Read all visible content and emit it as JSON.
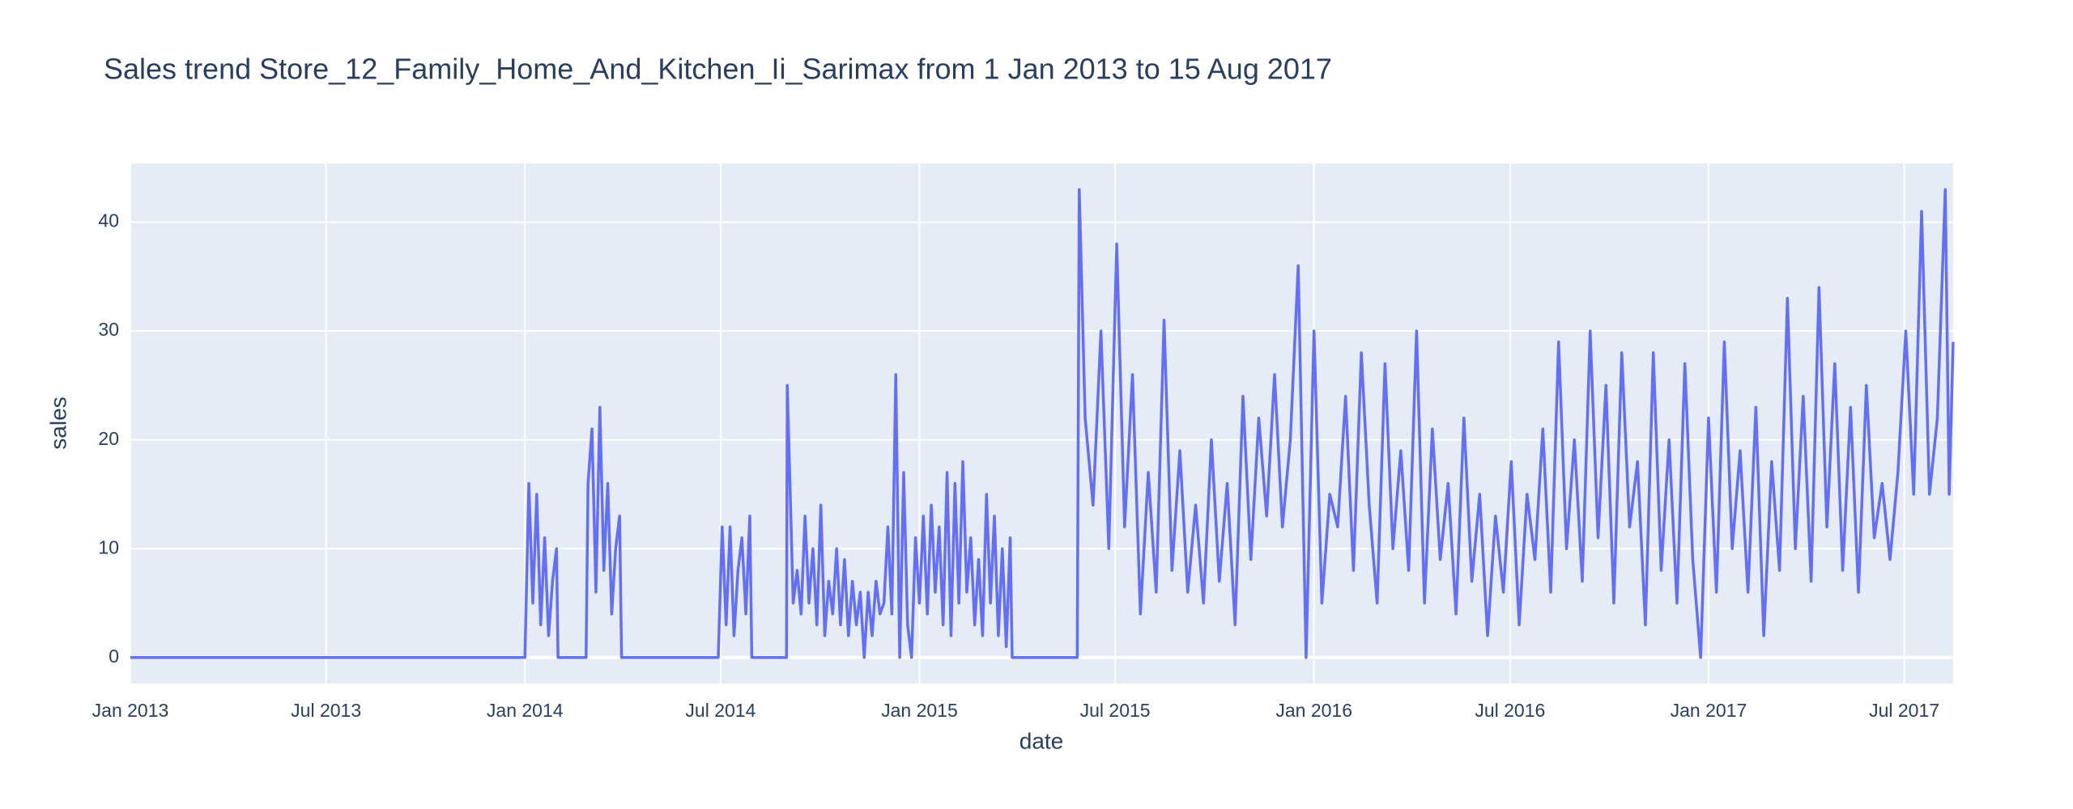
{
  "chart_data": {
    "type": "line",
    "title": "Sales trend Store_12_Family_Home_And_Kitchen_Ii_Sarimax from  1 Jan 2013 to 15 Aug 2017",
    "xlabel": "date",
    "ylabel": "sales",
    "color": "#636efa",
    "grid": true,
    "xlim": [
      2013,
      2017.62
    ],
    "ylim": [
      -2.4,
      45.4
    ],
    "xticks": [
      {
        "value": 2013,
        "label": "Jan 2013"
      },
      {
        "value": 2013.496,
        "label": "Jul 2013"
      },
      {
        "value": 2014,
        "label": "Jan 2014"
      },
      {
        "value": 2014.496,
        "label": "Jul 2014"
      },
      {
        "value": 2015,
        "label": "Jan 2015"
      },
      {
        "value": 2015.496,
        "label": "Jul 2015"
      },
      {
        "value": 2016,
        "label": "Jan 2016"
      },
      {
        "value": 2016.497,
        "label": "Jul 2016"
      },
      {
        "value": 2017,
        "label": "Jan 2017"
      },
      {
        "value": 2017.496,
        "label": "Jul 2017"
      }
    ],
    "yticks": [
      0,
      10,
      20,
      30,
      40
    ],
    "x": [
      2013,
      2014,
      2014.01,
      2014.02,
      2014.03,
      2014.04,
      2014.05,
      2014.06,
      2014.07,
      2014.08,
      2014.084,
      2014.155,
      2014.16,
      2014.17,
      2014.18,
      2014.19,
      2014.2,
      2014.21,
      2014.22,
      2014.23,
      2014.24,
      2014.245,
      2014.49,
      2014.5,
      2014.51,
      2014.52,
      2014.53,
      2014.54,
      2014.55,
      2014.56,
      2014.57,
      2014.575,
      2014.663,
      2014.665,
      2014.68,
      2014.69,
      2014.7,
      2014.71,
      2014.72,
      2014.73,
      2014.74,
      2014.75,
      2014.76,
      2014.77,
      2014.78,
      2014.79,
      2014.8,
      2014.81,
      2014.82,
      2014.83,
      2014.84,
      2014.85,
      2014.86,
      2014.87,
      2014.88,
      2014.89,
      2014.9,
      2014.91,
      2014.92,
      2014.93,
      2014.94,
      2014.95,
      2014.96,
      2014.97,
      2014.98,
      2014.99,
      2015,
      2015.01,
      2015.02,
      2015.03,
      2015.04,
      2015.05,
      2015.06,
      2015.07,
      2015.08,
      2015.09,
      2015.1,
      2015.11,
      2015.12,
      2015.13,
      2015.14,
      2015.15,
      2015.16,
      2015.17,
      2015.18,
      2015.19,
      2015.2,
      2015.21,
      2015.22,
      2015.23,
      2015.235,
      2015.4,
      2015.405,
      2015.42,
      2015.44,
      2015.46,
      2015.48,
      2015.5,
      2015.52,
      2015.54,
      2015.56,
      2015.58,
      2015.6,
      2015.62,
      2015.64,
      2015.66,
      2015.68,
      2015.7,
      2015.72,
      2015.74,
      2015.76,
      2015.78,
      2015.8,
      2015.82,
      2015.84,
      2015.86,
      2015.88,
      2015.9,
      2015.92,
      2015.94,
      2015.96,
      2015.98,
      2016,
      2016.02,
      2016.04,
      2016.06,
      2016.08,
      2016.1,
      2016.12,
      2016.14,
      2016.16,
      2016.18,
      2016.2,
      2016.22,
      2016.24,
      2016.26,
      2016.28,
      2016.3,
      2016.32,
      2016.34,
      2016.36,
      2016.38,
      2016.4,
      2016.42,
      2016.44,
      2016.46,
      2016.48,
      2016.5,
      2016.52,
      2016.54,
      2016.56,
      2016.58,
      2016.6,
      2016.62,
      2016.64,
      2016.66,
      2016.68,
      2016.7,
      2016.72,
      2016.74,
      2016.76,
      2016.78,
      2016.8,
      2016.82,
      2016.84,
      2016.86,
      2016.88,
      2016.9,
      2016.92,
      2016.94,
      2016.96,
      2016.98,
      2017,
      2017.02,
      2017.04,
      2017.06,
      2017.08,
      2017.1,
      2017.12,
      2017.14,
      2017.16,
      2017.18,
      2017.2,
      2017.22,
      2017.24,
      2017.26,
      2017.28,
      2017.3,
      2017.32,
      2017.34,
      2017.36,
      2017.38,
      2017.4,
      2017.42,
      2017.44,
      2017.46,
      2017.48,
      2017.5,
      2017.52,
      2017.54,
      2017.56,
      2017.58,
      2017.6,
      2017.61,
      2017.62
    ],
    "values": [
      0,
      0,
      16,
      5,
      15,
      3,
      11,
      2,
      7,
      10,
      0,
      0,
      16,
      21,
      6,
      23,
      8,
      16,
      4,
      10,
      13,
      0,
      0,
      12,
      3,
      12,
      2,
      8,
      11,
      4,
      13,
      0,
      0,
      25,
      5,
      8,
      4,
      13,
      5,
      10,
      3,
      14,
      2,
      7,
      4,
      10,
      3,
      9,
      2,
      7,
      3,
      6,
      0,
      6,
      2,
      7,
      4,
      5,
      12,
      4,
      26,
      0,
      17,
      3,
      0,
      11,
      5,
      13,
      4,
      14,
      6,
      12,
      3,
      17,
      2,
      16,
      5,
      18,
      6,
      11,
      3,
      9,
      2,
      15,
      5,
      13,
      2,
      10,
      1,
      11,
      0,
      0,
      43,
      22,
      14,
      30,
      10,
      38,
      12,
      26,
      4,
      17,
      6,
      31,
      8,
      19,
      6,
      14,
      5,
      20,
      7,
      16,
      3,
      24,
      9,
      22,
      13,
      26,
      12,
      20,
      36,
      0,
      30,
      5,
      15,
      12,
      24,
      8,
      28,
      14,
      5,
      27,
      10,
      19,
      8,
      30,
      5,
      21,
      9,
      16,
      4,
      22,
      7,
      15,
      2,
      13,
      6,
      18,
      3,
      15,
      9,
      21,
      6,
      29,
      10,
      20,
      7,
      30,
      11,
      25,
      5,
      28,
      12,
      18,
      3,
      28,
      8,
      20,
      5,
      27,
      9,
      0,
      22,
      6,
      29,
      10,
      19,
      6,
      23,
      2,
      18,
      8,
      33,
      10,
      24,
      7,
      34,
      12,
      27,
      8,
      23,
      6,
      25,
      11,
      16,
      9,
      17,
      30,
      15,
      41,
      15,
      22,
      43,
      15,
      29
    ]
  }
}
